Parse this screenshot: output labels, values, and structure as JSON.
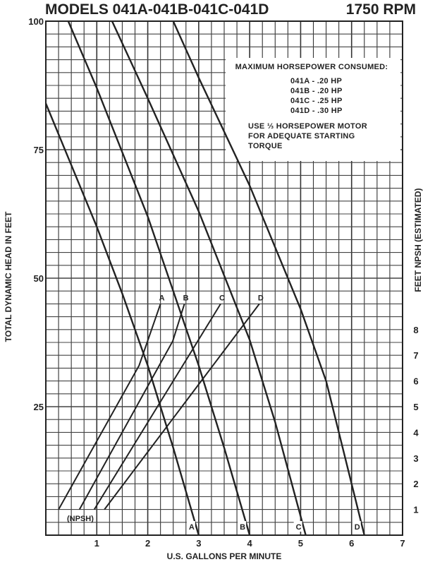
{
  "chart_data": {
    "type": "line",
    "title": "MODELS 041A-041B-041C-041D",
    "subtitle": "1750 RPM",
    "xlabel": "U.S. GALLONS PER MINUTE",
    "ylabel": "TOTAL DYNAMIC HEAD IN FEET",
    "y2label": "FEET NPSH  (ESTIMATED)",
    "xlim": [
      0,
      7
    ],
    "ylim": [
      0,
      100
    ],
    "y2lim": [
      0,
      20
    ],
    "xticks": [
      "1",
      "2",
      "3",
      "4",
      "5",
      "6",
      "7"
    ],
    "yticks": [
      "25",
      "50",
      "75",
      "100"
    ],
    "y2ticks": [
      "1",
      "2",
      "3",
      "4",
      "5",
      "6",
      "7",
      "8"
    ],
    "grid": true,
    "npsh_label": "(NPSH)",
    "head_series": [
      {
        "name": "A",
        "x": [
          0,
          0.5,
          1,
          1.5,
          2,
          2.5,
          3.0
        ],
        "y": [
          84,
          72,
          60,
          47,
          33,
          17,
          0
        ]
      },
      {
        "name": "B",
        "x": [
          0.44,
          1,
          2,
          3,
          3.5,
          4.0
        ],
        "y": [
          100,
          87,
          62,
          33,
          17,
          0
        ]
      },
      {
        "name": "C",
        "x": [
          1.3,
          2,
          3,
          4,
          4.5,
          5.1
        ],
        "y": [
          100,
          85,
          63,
          38,
          22,
          0
        ]
      },
      {
        "name": "D",
        "x": [
          2.5,
          3,
          4,
          5,
          5.5,
          6.25
        ],
        "y": [
          100,
          89,
          68,
          44,
          30,
          0
        ]
      }
    ],
    "npsh_series": [
      {
        "name": "A",
        "x": [
          0.25,
          1.83,
          2.25
        ],
        "npsh": [
          1,
          6.6,
          9
        ]
      },
      {
        "name": "B",
        "x": [
          0.66,
          2.49,
          2.72
        ],
        "npsh": [
          1,
          7.55,
          9
        ]
      },
      {
        "name": "C",
        "x": [
          0.95,
          3.43
        ],
        "npsh": [
          1,
          9
        ]
      },
      {
        "name": "D",
        "x": [
          1.15,
          4.19
        ],
        "npsh": [
          1,
          9
        ]
      }
    ],
    "annotation": {
      "heading": "MAXIMUM HORSEPOWER CONSUMED:",
      "rows": [
        "041A - .20 HP",
        "041B - .20 HP",
        "041C - .25 HP",
        "041D - .30 HP"
      ],
      "motor_note": [
        "USE ⅓ HORSEPOWER MOTOR",
        "FOR ADEQUATE STARTING",
        "TORQUE"
      ]
    }
  }
}
